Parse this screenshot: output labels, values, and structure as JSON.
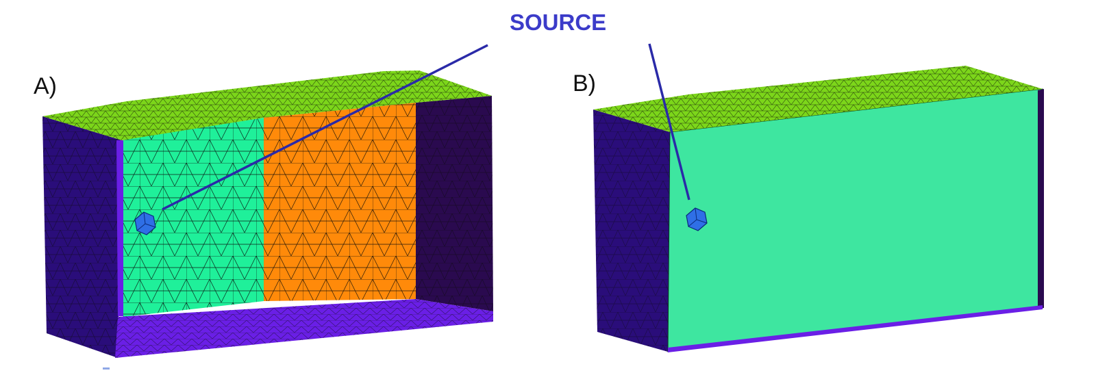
{
  "figure": {
    "source_label": "SOURCE",
    "panel_a": {
      "label": "A)"
    },
    "panel_b": {
      "label": "B)"
    }
  },
  "colors": {
    "source_text": "#3b3bc9",
    "leader_line": "#2a2aa8",
    "top_face": "#7cd61a",
    "side_wall": "#2a0d7a",
    "right_wall": "#2a0a4f",
    "back_green": "#1ff09a",
    "back_orange": "#ff8a0a",
    "floor": "#6a1fe6",
    "tet_light": "#3ee6a0",
    "tet_dark": "#0e8a4a",
    "source_icon": "#2f6fe6",
    "mesh_line": "#0a0a0a"
  },
  "icons": {
    "source_a": "hexagon-source-icon",
    "source_b": "hexagon-source-icon"
  }
}
